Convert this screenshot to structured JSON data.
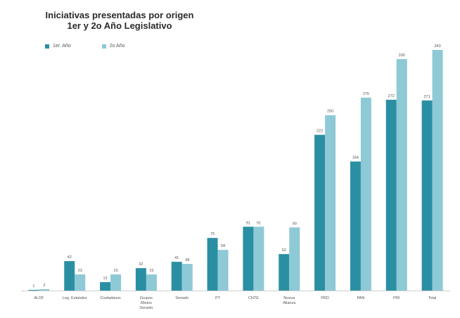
{
  "chart_data": {
    "type": "bar",
    "title": "Iniciativas presentadas por origen",
    "subtitle": "1er y 2o Año Legislativo",
    "categories": [
      "ALDF",
      "Leg. Estatales",
      "Ciudadanos",
      "Grupos Mixtos/Senado",
      "Senado",
      "PT",
      "CNTE",
      "Nueva Alianza",
      "PRD",
      "PAN",
      "PRI",
      "Total"
    ],
    "series": [
      {
        "name": "1er. Año",
        "color": "#2a8fa3",
        "values": [
          1,
          42,
          12,
          32,
          41,
          75,
          91,
          52,
          222,
          184,
          272,
          271
        ],
        "labels": [
          "1",
          "42",
          "12",
          "32",
          "41",
          "75",
          "91",
          "52",
          "222",
          "184",
          "272",
          "271"
        ]
      },
      {
        "name": "2o Año",
        "color": "#8ec9d6",
        "values": [
          2,
          23,
          23,
          23,
          38,
          58,
          91,
          90,
          250,
          275,
          330,
          343
        ],
        "labels": [
          "2",
          "23",
          "23",
          "23",
          "38",
          "58",
          "91",
          "90",
          "250",
          "275",
          "330",
          "343"
        ]
      }
    ],
    "ylim": [
      0,
      350
    ],
    "grid": false,
    "legend": "top-left"
  }
}
